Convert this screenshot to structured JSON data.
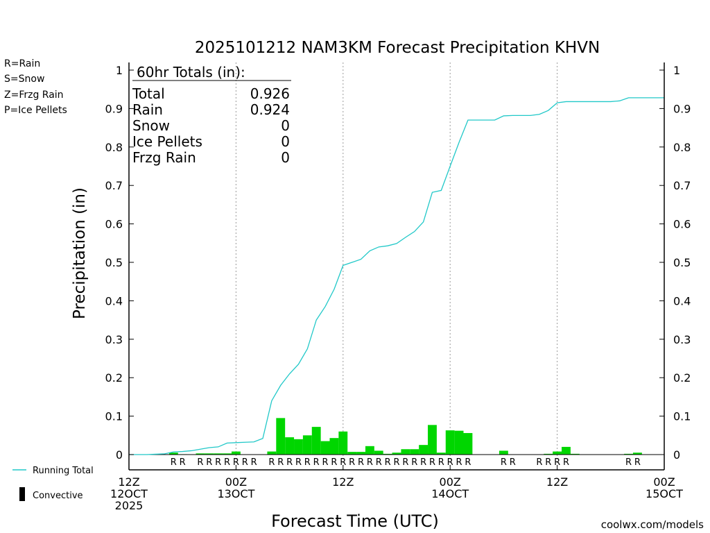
{
  "chart_data": {
    "type": "bar",
    "title": "2025101212 NAM3KM Forecast Precipitation KHVN",
    "xlabel": "Forecast Time (UTC)",
    "ylabel": "Precipitation (in)",
    "ylim": [
      0,
      1
    ],
    "yticks": [
      "0",
      "0.1",
      "0.2",
      "0.3",
      "0.4",
      "0.5",
      "0.6",
      "0.7",
      "0.8",
      "0.9",
      "1"
    ],
    "xlim_hours": [
      0,
      60
    ],
    "xticks": [
      {
        "hour": 0,
        "lines": [
          "12Z",
          "12OCT",
          "2025"
        ]
      },
      {
        "hour": 12,
        "lines": [
          "00Z",
          "13OCT"
        ]
      },
      {
        "hour": 24,
        "lines": [
          "12Z"
        ]
      },
      {
        "hour": 36,
        "lines": [
          "00Z",
          "14OCT"
        ]
      },
      {
        "hour": 48,
        "lines": [
          "12Z"
        ]
      },
      {
        "hour": 60,
        "lines": [
          "00Z",
          "15OCT"
        ]
      }
    ],
    "grid_hours": [
      12,
      24,
      36,
      48
    ],
    "hourly_precip": {
      "hours": [
        0,
        1,
        2,
        3,
        4,
        5,
        6,
        7,
        8,
        9,
        10,
        11,
        12,
        13,
        14,
        15,
        16,
        17,
        18,
        19,
        20,
        21,
        22,
        23,
        24,
        25,
        26,
        27,
        28,
        29,
        30,
        31,
        32,
        33,
        34,
        35,
        36,
        37,
        38,
        39,
        40,
        41,
        42,
        43,
        44,
        45,
        46,
        47,
        48,
        49,
        50,
        51,
        52,
        53,
        54,
        55,
        56,
        57,
        58,
        59,
        60
      ],
      "values": [
        0,
        0,
        0,
        0,
        0,
        0.005,
        0.001,
        0,
        0.003,
        0.003,
        0.003,
        0.003,
        0.008,
        0,
        0,
        0,
        0.008,
        0.095,
        0.045,
        0.04,
        0.05,
        0.072,
        0.035,
        0.043,
        0.06,
        0.007,
        0.007,
        0.022,
        0.01,
        0.002,
        0.005,
        0.014,
        0.014,
        0.025,
        0.077,
        0.005,
        0.063,
        0.062,
        0.056,
        0,
        0,
        0,
        0.01,
        0,
        0,
        0,
        0,
        0.002,
        0.008,
        0.02,
        0.002,
        0,
        0,
        0,
        0,
        0,
        0.002,
        0.005,
        0,
        0,
        0
      ]
    },
    "running_total": {
      "name": "Running Total",
      "hours": [
        0,
        1,
        2,
        3,
        4,
        5,
        6,
        7,
        8,
        9,
        10,
        11,
        12,
        13,
        14,
        15,
        16,
        17,
        18,
        19,
        20,
        21,
        22,
        23,
        24,
        25,
        26,
        27,
        28,
        29,
        30,
        31,
        32,
        33,
        34,
        35,
        36,
        37,
        38,
        39,
        40,
        41,
        42,
        43,
        44,
        45,
        46,
        47,
        48,
        49,
        50,
        51,
        52,
        53,
        54,
        55,
        56,
        57,
        58,
        59,
        60
      ],
      "values": [
        0,
        0,
        0,
        0.001,
        0.002,
        0.007,
        0.008,
        0.01,
        0.014,
        0.018,
        0.02,
        0.03,
        0.031,
        0.032,
        0.033,
        0.042,
        0.14,
        0.18,
        0.21,
        0.235,
        0.275,
        0.35,
        0.385,
        0.43,
        0.492,
        0.5,
        0.508,
        0.53,
        0.54,
        0.543,
        0.549,
        0.565,
        0.58,
        0.605,
        0.682,
        0.687,
        0.75,
        0.812,
        0.87,
        0.87,
        0.87,
        0.87,
        0.881,
        0.882,
        0.882,
        0.882,
        0.885,
        0.895,
        0.915,
        0.918,
        0.918,
        0.918,
        0.918,
        0.918,
        0.918,
        0.92,
        0.928,
        0.928,
        0.928,
        0.928,
        0.928
      ]
    },
    "ptype_row": {
      "hours": [
        5,
        6,
        8,
        9,
        10,
        11,
        12,
        13,
        14,
        16,
        17,
        18,
        19,
        20,
        21,
        22,
        23,
        24,
        25,
        26,
        27,
        28,
        29,
        30,
        31,
        32,
        33,
        34,
        35,
        36,
        37,
        38,
        42,
        43,
        46,
        47,
        48,
        49,
        56,
        57
      ],
      "label": "R"
    },
    "totals_box": {
      "header": "60hr Totals (in):",
      "rows": [
        {
          "label": "Total",
          "value": "0.926"
        },
        {
          "label": "Rain",
          "value": "0.924"
        },
        {
          "label": "Snow",
          "value": "0"
        },
        {
          "label": "Ice Pellets",
          "value": "0"
        },
        {
          "label": "Frzg Rain",
          "value": "0"
        }
      ]
    },
    "type_legend": [
      {
        "text": "R=Rain",
        "color": "#22dd22"
      },
      {
        "text": "S=Snow",
        "color": "#3a5ee8"
      },
      {
        "text": "Z=Frzg Rain",
        "color": "#f08a30"
      },
      {
        "text": "P=Ice Pellets",
        "color": "#e0208a"
      }
    ],
    "series_legend": [
      {
        "text": "Running Total",
        "color": "#20c8c8",
        "kind": "line"
      },
      {
        "text": "Convective",
        "color": "#000000",
        "kind": "bar"
      }
    ],
    "bar_color": "#00d600",
    "line_color": "#20c8c8",
    "rain_label_color": "#22dd22",
    "grid": "vertical-dotted",
    "legend_placement": "left"
  },
  "credit": "coolwx.com/models",
  "credit_color": "#d02020"
}
